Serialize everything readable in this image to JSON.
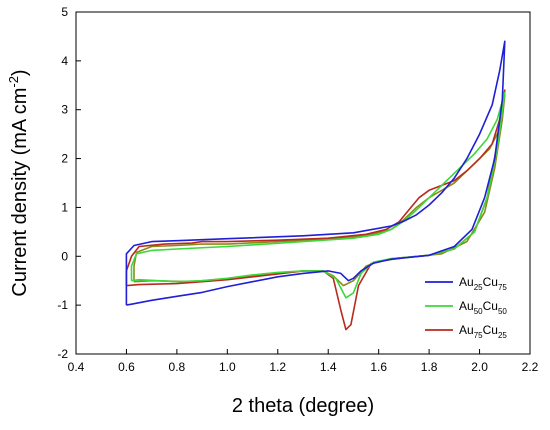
{
  "chart_data": {
    "type": "line",
    "xlabel": "2  theta (degree)",
    "ylabel": "Current density (mA cm",
    "ylabel_sup": "-2",
    "ylabel_close": ")",
    "xlim": [
      0.4,
      2.2
    ],
    "ylim": [
      -2,
      5
    ],
    "xticks": [
      0.4,
      0.6,
      0.8,
      1.0,
      1.2,
      1.4,
      1.6,
      1.8,
      2.0,
      2.2
    ],
    "xtick_labels": [
      "0.4",
      "0.6",
      "0.8",
      "1.0",
      "1.2",
      "1.4",
      "1.6",
      "1.8",
      "2.0",
      "2.2"
    ],
    "yticks": [
      -2,
      -1,
      0,
      1,
      2,
      3,
      4,
      5
    ],
    "ytick_labels": [
      "-2",
      "-1",
      "0",
      "1",
      "2",
      "3",
      "4",
      "5"
    ],
    "grid": false,
    "legend_position": "lower-right",
    "series": [
      {
        "name": "Au25Cu75",
        "legend_parts": [
          [
            "Au",
            ""
          ],
          [
            "25",
            "sub"
          ],
          [
            "Cu",
            ""
          ],
          [
            "75",
            "sub"
          ]
        ],
        "color": "#1f1fd6",
        "points": [
          [
            0.6,
            -1.0
          ],
          [
            0.62,
            -0.98
          ],
          [
            0.7,
            -0.9
          ],
          [
            0.8,
            -0.82
          ],
          [
            0.9,
            -0.74
          ],
          [
            1.0,
            -0.62
          ],
          [
            1.1,
            -0.52
          ],
          [
            1.2,
            -0.42
          ],
          [
            1.3,
            -0.35
          ],
          [
            1.4,
            -0.3
          ],
          [
            1.45,
            -0.35
          ],
          [
            1.48,
            -0.5
          ],
          [
            1.5,
            -0.45
          ],
          [
            1.53,
            -0.3
          ],
          [
            1.58,
            -0.14
          ],
          [
            1.65,
            -0.06
          ],
          [
            1.8,
            0.02
          ],
          [
            1.9,
            0.2
          ],
          [
            1.97,
            0.55
          ],
          [
            2.02,
            1.2
          ],
          [
            2.06,
            2.0
          ],
          [
            2.09,
            3.2
          ],
          [
            2.1,
            4.4
          ],
          [
            2.08,
            3.8
          ],
          [
            2.05,
            3.1
          ],
          [
            2.0,
            2.5
          ],
          [
            1.95,
            2.0
          ],
          [
            1.9,
            1.6
          ],
          [
            1.85,
            1.3
          ],
          [
            1.8,
            1.05
          ],
          [
            1.75,
            0.85
          ],
          [
            1.7,
            0.72
          ],
          [
            1.65,
            0.62
          ],
          [
            1.5,
            0.48
          ],
          [
            1.3,
            0.42
          ],
          [
            1.0,
            0.36
          ],
          [
            0.8,
            0.32
          ],
          [
            0.7,
            0.3
          ],
          [
            0.63,
            0.22
          ],
          [
            0.6,
            0.05
          ],
          [
            0.6,
            -1.0
          ]
        ]
      },
      {
        "name": "Au50Cu50",
        "legend_parts": [
          [
            "Au",
            ""
          ],
          [
            "50",
            "sub"
          ],
          [
            "Cu",
            ""
          ],
          [
            "50",
            "sub"
          ]
        ],
        "color": "#3cd83c",
        "points": [
          [
            0.62,
            -0.5
          ],
          [
            0.65,
            -0.48
          ],
          [
            0.8,
            -0.52
          ],
          [
            0.9,
            -0.5
          ],
          [
            1.0,
            -0.45
          ],
          [
            1.1,
            -0.38
          ],
          [
            1.2,
            -0.33
          ],
          [
            1.3,
            -0.3
          ],
          [
            1.38,
            -0.3
          ],
          [
            1.43,
            -0.45
          ],
          [
            1.47,
            -0.85
          ],
          [
            1.5,
            -0.75
          ],
          [
            1.53,
            -0.35
          ],
          [
            1.58,
            -0.12
          ],
          [
            1.65,
            -0.05
          ],
          [
            1.8,
            0.02
          ],
          [
            1.9,
            0.15
          ],
          [
            1.98,
            0.5
          ],
          [
            2.03,
            1.2
          ],
          [
            2.07,
            2.2
          ],
          [
            2.1,
            3.35
          ],
          [
            2.07,
            2.8
          ],
          [
            2.03,
            2.4
          ],
          [
            1.98,
            2.1
          ],
          [
            1.93,
            1.85
          ],
          [
            1.88,
            1.6
          ],
          [
            1.8,
            1.2
          ],
          [
            1.75,
            0.95
          ],
          [
            1.7,
            0.72
          ],
          [
            1.65,
            0.55
          ],
          [
            1.6,
            0.45
          ],
          [
            1.5,
            0.37
          ],
          [
            1.3,
            0.3
          ],
          [
            1.0,
            0.2
          ],
          [
            0.8,
            0.15
          ],
          [
            0.7,
            0.12
          ],
          [
            0.64,
            0.05
          ],
          [
            0.62,
            -0.2
          ],
          [
            0.62,
            -0.5
          ]
        ]
      },
      {
        "name": "Au75Cu25",
        "legend_parts": [
          [
            "Au",
            ""
          ],
          [
            "75",
            "sub"
          ],
          [
            "Cu",
            ""
          ],
          [
            "25",
            "sub"
          ]
        ],
        "color": "#b82a1e",
        "points": [
          [
            0.6,
            -0.6
          ],
          [
            0.65,
            -0.58
          ],
          [
            0.8,
            -0.56
          ],
          [
            0.9,
            -0.52
          ],
          [
            1.0,
            -0.48
          ],
          [
            1.1,
            -0.42
          ],
          [
            1.2,
            -0.36
          ],
          [
            1.3,
            -0.3
          ],
          [
            1.38,
            -0.3
          ],
          [
            1.42,
            -0.45
          ],
          [
            1.45,
            -1.1
          ],
          [
            1.47,
            -1.5
          ],
          [
            1.49,
            -1.4
          ],
          [
            1.52,
            -0.6
          ],
          [
            1.57,
            -0.15
          ],
          [
            1.65,
            -0.05
          ],
          [
            1.8,
            0.02
          ],
          [
            1.9,
            0.15
          ],
          [
            1.98,
            0.5
          ],
          [
            2.03,
            1.2
          ],
          [
            2.07,
            2.3
          ],
          [
            2.1,
            3.4
          ],
          [
            2.08,
            2.8
          ],
          [
            2.05,
            2.3
          ],
          [
            2.0,
            2.0
          ],
          [
            1.95,
            1.75
          ],
          [
            1.9,
            1.55
          ],
          [
            1.85,
            1.45
          ],
          [
            1.8,
            1.35
          ],
          [
            1.76,
            1.2
          ],
          [
            1.72,
            0.95
          ],
          [
            1.68,
            0.7
          ],
          [
            1.63,
            0.55
          ],
          [
            1.55,
            0.45
          ],
          [
            1.4,
            0.37
          ],
          [
            1.2,
            0.33
          ],
          [
            1.0,
            0.3
          ],
          [
            0.9,
            0.3
          ],
          [
            0.86,
            0.27
          ],
          [
            0.75,
            0.25
          ],
          [
            0.65,
            0.2
          ],
          [
            0.62,
            0.0
          ],
          [
            0.6,
            -0.3
          ],
          [
            0.6,
            -0.6
          ]
        ]
      },
      {
        "name": "",
        "color": "#8b8b1a",
        "points": [
          [
            0.63,
            -0.52
          ],
          [
            0.7,
            -0.5
          ],
          [
            0.85,
            -0.52
          ],
          [
            1.0,
            -0.46
          ],
          [
            1.15,
            -0.38
          ],
          [
            1.3,
            -0.3
          ],
          [
            1.38,
            -0.3
          ],
          [
            1.42,
            -0.4
          ],
          [
            1.46,
            -0.6
          ],
          [
            1.5,
            -0.5
          ],
          [
            1.55,
            -0.2
          ],
          [
            1.6,
            -0.1
          ],
          [
            1.7,
            -0.03
          ],
          [
            1.85,
            0.05
          ],
          [
            1.95,
            0.3
          ],
          [
            2.02,
            0.9
          ],
          [
            2.06,
            1.8
          ],
          [
            2.09,
            2.8
          ],
          [
            2.1,
            3.3
          ],
          [
            2.08,
            2.6
          ],
          [
            2.04,
            2.2
          ],
          [
            2.0,
            2.0
          ],
          [
            1.95,
            1.75
          ],
          [
            1.9,
            1.5
          ],
          [
            1.85,
            1.35
          ],
          [
            1.8,
            1.2
          ],
          [
            1.75,
            1.0
          ],
          [
            1.7,
            0.75
          ],
          [
            1.65,
            0.55
          ],
          [
            1.55,
            0.42
          ],
          [
            1.4,
            0.35
          ],
          [
            1.2,
            0.3
          ],
          [
            1.0,
            0.25
          ],
          [
            0.9,
            0.25
          ],
          [
            0.8,
            0.22
          ],
          [
            0.7,
            0.2
          ],
          [
            0.64,
            0.08
          ],
          [
            0.63,
            -0.2
          ],
          [
            0.63,
            -0.52
          ]
        ]
      }
    ]
  }
}
